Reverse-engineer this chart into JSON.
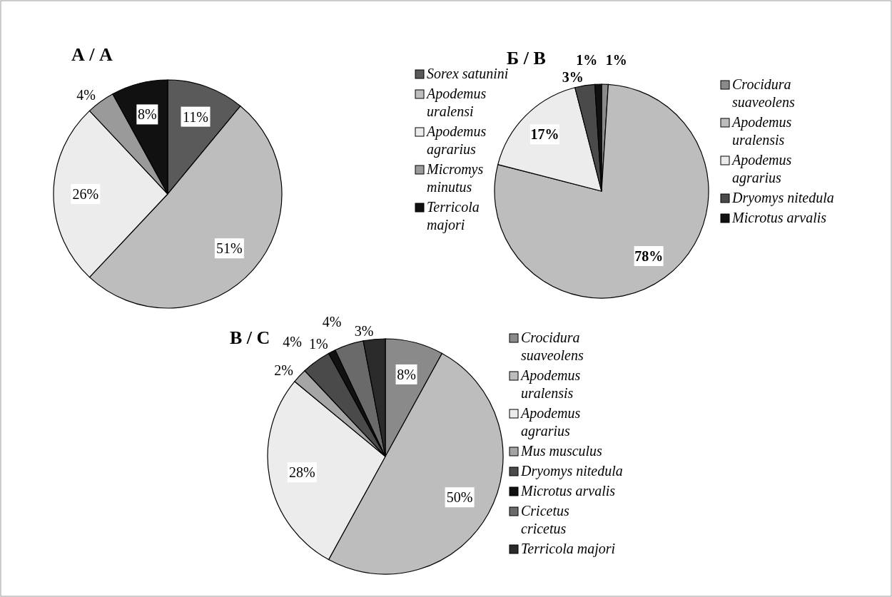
{
  "chart_data": [
    {
      "type": "pie",
      "title": "А / A",
      "legend": "right",
      "categories": [
        "Sorex satunini",
        "Apodemus uralensi",
        "Apodemus agrarius",
        "Micromys minutus",
        "Terricola majori"
      ],
      "values": [
        11,
        51,
        26,
        4,
        8
      ],
      "value_labels": [
        "11%",
        "51%",
        "26%",
        "4%",
        "8%"
      ],
      "colors": [
        "#5a5a5a",
        "#bdbdbd",
        "#ececec",
        "#9a9a9a",
        "#111111"
      ]
    },
    {
      "type": "pie",
      "title": "Б / B",
      "legend": "right",
      "categories": [
        "Crocidura suaveolens",
        "Apodemus uralensis",
        "Apodemus agrarius",
        "Dryomys nitedula",
        "Microtus arvalis"
      ],
      "values": [
        1,
        78,
        17,
        3,
        1
      ],
      "value_labels": [
        "1%",
        "78%",
        "17%",
        "3%",
        "1%"
      ],
      "colors": [
        "#8a8a8a",
        "#bdbdbd",
        "#ececec",
        "#4a4a4a",
        "#111111"
      ]
    },
    {
      "type": "pie",
      "title": "В / C",
      "legend": "right",
      "categories": [
        "Crocidura suaveolens",
        "Apodemus uralensis",
        "Apodemus agrarius",
        "Mus musculus",
        "Dryomys nitedula",
        "Microtus arvalis",
        "Cricetus cricetus",
        "Terricola majori"
      ],
      "values": [
        8,
        50,
        28,
        2,
        4,
        1,
        4,
        3
      ],
      "value_labels": [
        "8%",
        "50%",
        "28%",
        "2%",
        "4%",
        "1%",
        "4%",
        "3%"
      ],
      "colors": [
        "#8a8a8a",
        "#bdbdbd",
        "#ececec",
        "#a5a5a5",
        "#4a4a4a",
        "#111111",
        "#6a6a6a",
        "#2a2a2a"
      ]
    }
  ]
}
